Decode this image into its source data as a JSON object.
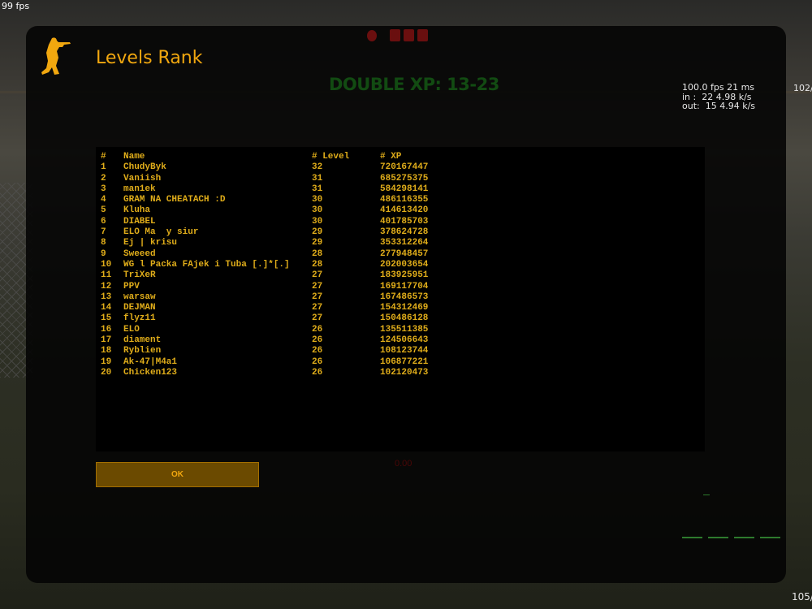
{
  "hud": {
    "fps_counter": "99 fps",
    "net_graph": [
      "100.0 fps 21 ms",
      "in :  22 4.98 k/s",
      "out:  15 4.94 k/s"
    ],
    "net_graph_right_top": "102/",
    "net_graph_right_bottom": "105/",
    "double_xp": "DOUBLE XP: 13-23",
    "score_readout": "0.00"
  },
  "colors": {
    "accent": "#f1a70f",
    "table_text": "#e0ad1a",
    "double_xp": "#124b12",
    "button_bg": "#6b4a00"
  },
  "motd": {
    "logo_icon": "counter-terrorist-logo-icon",
    "title": "Levels Rank",
    "ok_label": "OK",
    "table": {
      "headers": [
        "#",
        "Name",
        "# Level",
        "# XP"
      ],
      "rows": [
        [
          "1",
          "ChudyByk",
          "32",
          "720167447"
        ],
        [
          "2",
          "Vaniish",
          "31",
          "685275375"
        ],
        [
          "3",
          "man1ek",
          "31",
          "584298141"
        ],
        [
          "4",
          "GRAM NA CHEATACH :D",
          "30",
          "486116355"
        ],
        [
          "5",
          "Kluha",
          "30",
          "414613420"
        ],
        [
          "6",
          "DIABEL",
          "30",
          "401785703"
        ],
        [
          "7",
          "ELO Ma  y siur",
          "29",
          "378624728"
        ],
        [
          "8",
          "Ej | krisu",
          "29",
          "353312264"
        ],
        [
          "9",
          "Sweeed",
          "28",
          "277948457"
        ],
        [
          "10",
          "WG l Packa FAjek i Tuba [.]*[.]",
          "28",
          "202003654"
        ],
        [
          "11",
          "TriXeR",
          "27",
          "183925951"
        ],
        [
          "12",
          "PPV",
          "27",
          "169117704"
        ],
        [
          "13",
          "warsaw",
          "27",
          "167486573"
        ],
        [
          "14",
          "DEJMAN",
          "27",
          "154312469"
        ],
        [
          "15",
          "flyz11",
          "27",
          "150486128"
        ],
        [
          "16",
          "ELO",
          "26",
          "135511385"
        ],
        [
          "17",
          "diament",
          "26",
          "124506643"
        ],
        [
          "18",
          "Ryblien",
          "26",
          "108123744"
        ],
        [
          "19",
          "Ak-47|M4a1",
          "26",
          "106877221"
        ],
        [
          "20",
          "Chicken123",
          "26",
          "102120473"
        ]
      ]
    }
  }
}
